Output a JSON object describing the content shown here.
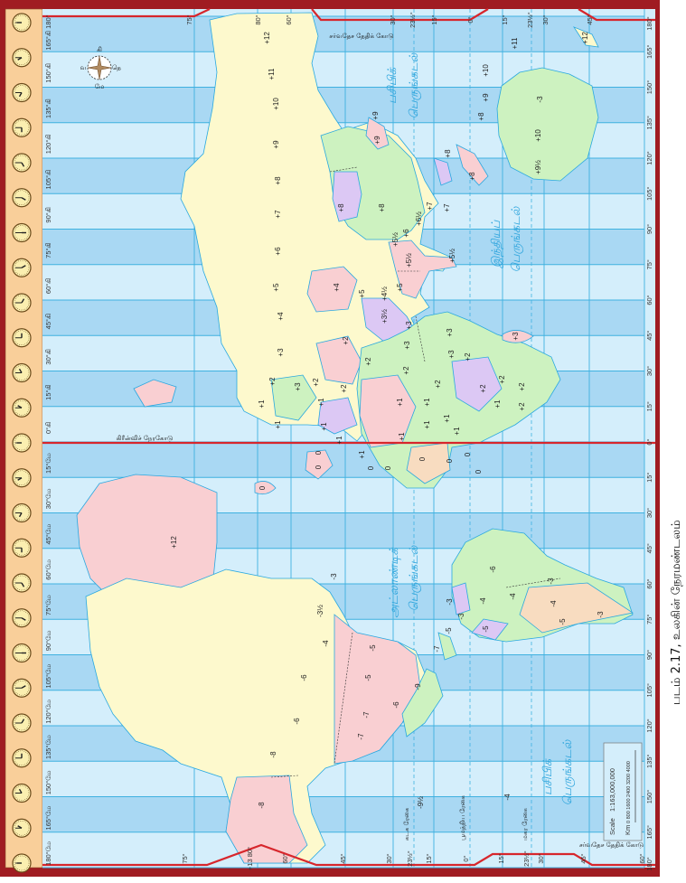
{
  "colors": {
    "border": "#a01c22",
    "clock_column": "#f9cf9a",
    "ocean_light": "#d4eefb",
    "ocean_dark": "#a9d8f3",
    "grid": "#3fb1e0",
    "date_line": "#d7262c",
    "land_yellow": "#fdf9cd",
    "land_pink": "#f9cfd2",
    "land_green": "#cdf2c0",
    "land_purple": "#dcc8f4",
    "land_orange": "#f8dcc0"
  },
  "left_longitude_labels": [
    "165°கி 180°",
    "150°கி",
    "135°கி",
    "120°கி",
    "105°கி",
    "90°கி",
    "75°கி",
    "60°கி",
    "45°கி",
    "30°கி",
    "15°கி",
    "0°கி",
    "15°மே",
    "30°மே",
    "45°மே",
    "60°மே",
    "75°மே",
    "90°மே",
    "105°மே",
    "120°மே",
    "135°மே",
    "150°மே",
    "165°மே",
    "180°மே"
  ],
  "right_longitude_labels": [
    "180°",
    "165°",
    "150°",
    "135°",
    "120°",
    "105°",
    "90°",
    "75°",
    "60°",
    "45°",
    "30°",
    "15°",
    "0°",
    "15°",
    "30°",
    "45°",
    "60°",
    "75°",
    "90°",
    "105°",
    "120°",
    "135°",
    "150°",
    "165°",
    "180°"
  ],
  "latitude_labels_top": [
    "75°",
    "80°",
    "60°",
    "30°",
    "23½°",
    "15°",
    "0°",
    "15°",
    "23½°",
    "30°",
    "45°"
  ],
  "latitude_labels_bottom": [
    "75°",
    "+13 80°",
    "60°",
    "45°",
    "30°",
    "23½°",
    "15°",
    "0°",
    "15°",
    "23½°",
    "30°",
    "45°",
    "60°"
  ],
  "lines": {
    "date_line_top": "சர்வதேச தேதிக் கோடு",
    "date_line_bottom": "சர்வதேச தேதிக் கோடு",
    "greenwich": "கிரீன்விச் நேரகோடு",
    "tropic_cancer": "கடக ரேகை",
    "equator": "பூமத்திய ரேகை",
    "tropic_capricorn": "மகர ரேகை"
  },
  "oceans": {
    "pacific_top": [
      "பசிபிக்",
      "பெருங்கடல்"
    ],
    "indian": [
      "இந்தியப்",
      "பெருங்கடல்"
    ],
    "atlantic": [
      "அட்லாண்டிக்",
      "பெருங்கடல்"
    ],
    "pacific_bottom": [
      "பசிபிக்",
      "பெருங்கடல்"
    ]
  },
  "compass": {
    "north": "வ",
    "east": "கி",
    "south": "தெ",
    "west": "மே"
  },
  "scale": {
    "title": "Scale",
    "ratio": "1:163,000,000",
    "unit": "Km",
    "ticks": "0 800 1600 2400 3200 4000"
  },
  "zone_labels": [
    "+12",
    "+11",
    "+10",
    "+9",
    "+8",
    "+7",
    "+6",
    "+5",
    "+8",
    "+8",
    "+9",
    "+9",
    "+8",
    "+8",
    "+7",
    "+7",
    "+6½",
    "+5½",
    "+6",
    "+5½",
    "+5½",
    "+4",
    "+5",
    "+4½",
    "+5",
    "+4",
    "+3½",
    "+3",
    "+3",
    "+2",
    "+3",
    "+3",
    "+2",
    "+2",
    "+2",
    "+2",
    "+2",
    "+3",
    "+2",
    "+3",
    "+2",
    "+1",
    "+1",
    "+2",
    "+1",
    "+1",
    "+2",
    "+2",
    "+1",
    "+2",
    "+1",
    "+1",
    "+1",
    "+1",
    "+1",
    "+1",
    "+1",
    "+3",
    "0",
    "0",
    "+1",
    "0",
    "0",
    "0",
    "0",
    "0",
    "0",
    "0",
    "-3",
    "+10",
    "+9½",
    "+8",
    "+9",
    "+10",
    "+11",
    "+12",
    "+12",
    "-3",
    "-3½",
    "-4",
    "-5",
    "-5",
    "-6",
    "-6",
    "-7",
    "-7",
    "-8",
    "-8",
    "-9",
    "-6",
    "-7",
    "-5",
    "-6",
    "-3",
    "-4",
    "-4",
    "-4",
    "-3",
    "-3",
    "-3",
    "-5",
    "-5",
    "-4",
    "-9½",
    "-9"
  ],
  "caption": "படம் 2.17, உலகின் நேரமண்டலம்"
}
